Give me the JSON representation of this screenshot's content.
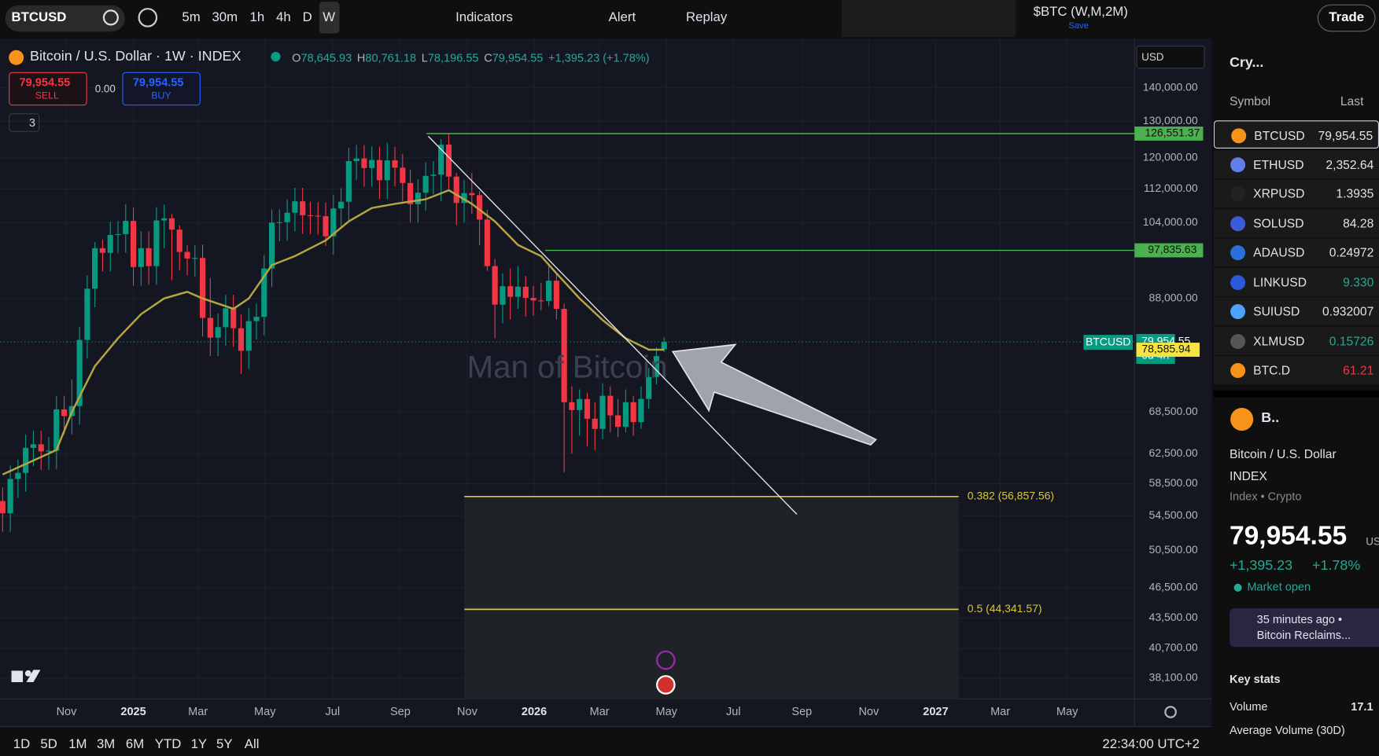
{
  "toolbar": {
    "symbol": "BTCUSD",
    "intervals": [
      "5m",
      "30m",
      "1h",
      "4h",
      "D",
      "W"
    ],
    "indicators": "Indicators",
    "alert": "Alert",
    "replay": "Replay",
    "layout": "$BTC (W,M,2M)",
    "save": "Save",
    "trade": "Trade"
  },
  "legend": {
    "title": "Bitcoin / U.S. Dollar · 1W · INDEX",
    "keys": [
      "O",
      "H",
      "L",
      "C"
    ],
    "values": [
      "78,645.93",
      "80,761.18",
      "78,196.55",
      "79,954.55"
    ],
    "change": "+1,395.23 (+1.78%)"
  },
  "trade_box": {
    "sell_price": "79,954.55",
    "sell": "SELL",
    "spread": "0.00",
    "buy_price": "79,954.55",
    "buy": "BUY"
  },
  "indicator_count": "3",
  "currency": "USD",
  "watermark": "Man of Bitcoin",
  "chart_data": {
    "type": "candlestick",
    "up_color": "#089981",
    "down_color": "#f23645",
    "log_scale": true,
    "grid": true,
    "ohlc": [
      [
        56300,
        58000,
        52600,
        54800
      ],
      [
        54800,
        60900,
        52600,
        59100
      ],
      [
        59100,
        61700,
        56700,
        59900
      ],
      [
        59900,
        65200,
        57500,
        63300
      ],
      [
        63300,
        65700,
        60800,
        63800
      ],
      [
        63800,
        65700,
        60300,
        62800
      ],
      [
        62800,
        64800,
        60300,
        62900
      ],
      [
        62900,
        71000,
        60400,
        68900
      ],
      [
        68900,
        71000,
        65200,
        67900
      ],
      [
        67900,
        73600,
        65200,
        69400
      ],
      [
        69400,
        82700,
        66600,
        80300
      ],
      [
        80300,
        92600,
        77100,
        89900
      ],
      [
        89900,
        99600,
        86300,
        98300
      ],
      [
        98300,
        100200,
        93400,
        97300
      ],
      [
        97300,
        104200,
        93400,
        101200
      ],
      [
        101200,
        104400,
        97200,
        101400
      ],
      [
        101400,
        108300,
        97300,
        104400
      ],
      [
        104400,
        107500,
        90500,
        94300
      ],
      [
        94300,
        102000,
        90500,
        98300
      ],
      [
        98300,
        102000,
        90700,
        94500
      ],
      [
        94500,
        107600,
        90700,
        104500
      ],
      [
        104500,
        108200,
        98300,
        105000
      ],
      [
        105000,
        106000,
        91600,
        102400
      ],
      [
        102400,
        103400,
        93600,
        97500
      ],
      [
        97500,
        99000,
        92600,
        96100
      ],
      [
        96100,
        99000,
        92300,
        96200
      ],
      [
        96200,
        99100,
        80900,
        84300
      ],
      [
        84300,
        92000,
        77500,
        80700
      ],
      [
        80700,
        85100,
        77500,
        82600
      ],
      [
        82600,
        88700,
        79300,
        86100
      ],
      [
        86100,
        88700,
        79100,
        82400
      ],
      [
        82400,
        84900,
        74500,
        78400
      ],
      [
        78400,
        86200,
        75300,
        83700
      ],
      [
        83700,
        87000,
        80400,
        84500
      ],
      [
        84500,
        96800,
        81100,
        94000
      ],
      [
        94000,
        107100,
        90200,
        104000
      ],
      [
        104000,
        107100,
        99800,
        104100
      ],
      [
        104100,
        109500,
        99900,
        106300
      ],
      [
        106300,
        112300,
        102000,
        109000
      ],
      [
        109000,
        112300,
        101500,
        105700
      ],
      [
        105700,
        108900,
        101400,
        105600
      ],
      [
        105600,
        108800,
        101300,
        105500
      ],
      [
        105500,
        108700,
        98800,
        100900
      ],
      [
        100900,
        110500,
        96900,
        107300
      ],
      [
        107300,
        112200,
        103000,
        108900
      ],
      [
        108900,
        122700,
        104500,
        119100
      ],
      [
        119100,
        123400,
        114300,
        119800
      ],
      [
        119800,
        123400,
        112600,
        117300
      ],
      [
        117300,
        123000,
        112600,
        119400
      ],
      [
        119400,
        123000,
        109600,
        114200
      ],
      [
        114200,
        124000,
        109600,
        119300
      ],
      [
        119300,
        122900,
        112700,
        117400
      ],
      [
        117400,
        120900,
        109000,
        113500
      ],
      [
        113500,
        116900,
        104000,
        108300
      ],
      [
        108300,
        114400,
        104000,
        111100
      ],
      [
        111100,
        118800,
        106700,
        115300
      ],
      [
        115300,
        119100,
        110700,
        115600
      ],
      [
        115600,
        125000,
        109000,
        123500
      ],
      [
        123500,
        126500,
        112000,
        115100
      ],
      [
        115100,
        116000,
        103500,
        108600
      ],
      [
        108600,
        114300,
        104000,
        111000
      ],
      [
        111000,
        116000,
        106000,
        110500
      ],
      [
        110500,
        111500,
        98900,
        104700
      ],
      [
        104700,
        107000,
        93500,
        94500
      ],
      [
        94500,
        96000,
        80600,
        86800
      ],
      [
        86800,
        93000,
        83300,
        90400
      ],
      [
        90400,
        94000,
        84000,
        88300
      ],
      [
        88300,
        94500,
        86000,
        90300
      ],
      [
        90300,
        92500,
        84500,
        88100
      ],
      [
        88100,
        90500,
        84700,
        87600
      ],
      [
        87600,
        91000,
        85700,
        87500
      ],
      [
        87500,
        95000,
        86500,
        91500
      ],
      [
        91500,
        93000,
        84000,
        86000
      ],
      [
        86000,
        87000,
        60000,
        70000
      ],
      [
        70000,
        72500,
        62500,
        68800
      ],
      [
        68800,
        72000,
        65000,
        70500
      ],
      [
        70500,
        71500,
        63500,
        67500
      ],
      [
        67500,
        70000,
        63000,
        66000
      ],
      [
        66000,
        73000,
        64500,
        71000
      ],
      [
        71000,
        72500,
        65500,
        68000
      ],
      [
        68000,
        70500,
        64800,
        66300
      ],
      [
        66300,
        72000,
        65500,
        70000
      ],
      [
        70000,
        71000,
        65000,
        67000
      ],
      [
        67000,
        72500,
        66000,
        70500
      ],
      [
        70500,
        75500,
        69000,
        74000
      ],
      [
        74000,
        79000,
        72800,
        77500
      ],
      [
        78645.93,
        80761.18,
        78196.55,
        79954.55
      ]
    ],
    "ma": {
      "color": "#b5a642",
      "x": [
        0,
        7,
        9,
        12,
        15,
        18,
        21,
        24,
        26,
        30,
        32,
        35,
        38,
        42,
        45,
        48,
        51,
        55,
        58,
        61,
        64,
        67,
        70,
        72,
        75,
        78,
        81,
        84,
        86
      ],
      "values": [
        59700,
        63000,
        68500,
        75800,
        80600,
        85000,
        88000,
        89300,
        88000,
        86000,
        88000,
        94700,
        96600,
        100000,
        104300,
        107400,
        108400,
        109500,
        111700,
        108400,
        104300,
        99000,
        96600,
        93000,
        88000,
        83900,
        80600,
        78600,
        78585.94
      ]
    },
    "xlim": [
      -0.34,
      147.15
    ],
    "xticks": [
      {
        "value": 8.3,
        "label": "Nov"
      },
      {
        "value": 17,
        "label": "2025"
      },
      {
        "value": 25.4,
        "label": "Mar"
      },
      {
        "value": 34.1,
        "label": "May"
      },
      {
        "value": 42.9,
        "label": "Jul"
      },
      {
        "value": 51.7,
        "label": "Sep"
      },
      {
        "value": 60.4,
        "label": "Nov"
      },
      {
        "value": 69.1,
        "label": "2026"
      },
      {
        "value": 77.6,
        "label": "Mar"
      },
      {
        "value": 86.3,
        "label": "May"
      },
      {
        "value": 95,
        "label": "Jul"
      },
      {
        "value": 103.9,
        "label": "Sep"
      },
      {
        "value": 112.6,
        "label": "Nov"
      },
      {
        "value": 121.3,
        "label": "2027"
      },
      {
        "value": 129.7,
        "label": "Mar"
      },
      {
        "value": 138.4,
        "label": "May"
      }
    ],
    "ylim": [
      36400,
      155700
    ],
    "yticks": [
      {
        "value": 140000,
        "label": "140,000.00"
      },
      {
        "value": 130000,
        "label": "130,000.00"
      },
      {
        "value": 120000,
        "label": "120,000.00"
      },
      {
        "value": 112000,
        "label": "112,000.00"
      },
      {
        "value": 104000,
        "label": "104,000.00"
      },
      {
        "value": 88000,
        "label": "88,000.00"
      },
      {
        "value": 68500,
        "label": "68,500.00"
      },
      {
        "value": 62500,
        "label": "62,500.00"
      },
      {
        "value": 58500,
        "label": "58,500.00"
      },
      {
        "value": 54500,
        "label": "54,500.00"
      },
      {
        "value": 50500,
        "label": "50,500.00"
      },
      {
        "value": 46500,
        "label": "46,500.00"
      },
      {
        "value": 43500,
        "label": "43,500.00"
      },
      {
        "value": 40700,
        "label": "40,700.00"
      },
      {
        "value": 38100,
        "label": "38,100.00"
      }
    ],
    "levels": [
      {
        "value": 126551.37,
        "label": "126,551.37",
        "color": "#4caf50"
      },
      {
        "value": 97835.63,
        "label": "97,835.63",
        "color": "#4caf50"
      }
    ],
    "fib": [
      {
        "value": 56857.56,
        "label": "0.382 (56,857.56)",
        "color": "#d6c83a"
      },
      {
        "value": 44341.57,
        "label": "0.5 (44,341.57)",
        "color": "#d6c83a"
      }
    ],
    "last_price": {
      "value": 79954.55,
      "label": "79,954.55",
      "countdown": "6d 4h",
      "symbol": "BTCUSD",
      "color": "#089981"
    },
    "ma_last": {
      "value": 78585.94,
      "label": "78,585.94",
      "color": "#f5e342"
    }
  },
  "ranges": [
    "1D",
    "5D",
    "1M",
    "3M",
    "6M",
    "YTD",
    "1Y",
    "5Y",
    "All"
  ],
  "clock": "22:34:00 UTC+2",
  "watchlist": {
    "title": "Cry...",
    "columns": [
      "Symbol",
      "Last"
    ],
    "rows": [
      [
        "BTCUSD",
        "79,954.55"
      ],
      [
        "ETHUSD",
        "2,352.64"
      ],
      [
        "XRPUSD",
        "1.3935"
      ],
      [
        "SOLUSD",
        "84.28"
      ],
      [
        "ADAUSD",
        "0.24972"
      ],
      [
        "LINKUSD",
        "9.330"
      ],
      [
        "SUIUSD",
        "0.932007"
      ],
      [
        "XLMUSD",
        "0.15726"
      ],
      [
        "BTC.D",
        "61.21"
      ]
    ]
  },
  "details": {
    "short": "B..",
    "name": "Bitcoin / U.S. Dollar",
    "exchange": "INDEX",
    "category": "Index • Crypto",
    "price": "79,954.55",
    "currency": "USD",
    "change": "+1,395.23",
    "change_pct": "+1.78%",
    "status": "Market open",
    "news_time": "35 minutes ago •",
    "news_title": "Bitcoin Reclaims...",
    "key_stats": "Key stats",
    "volume_label": "Volume",
    "volume": "17.1",
    "avg_volume_label": "Average Volume (30D)"
  }
}
